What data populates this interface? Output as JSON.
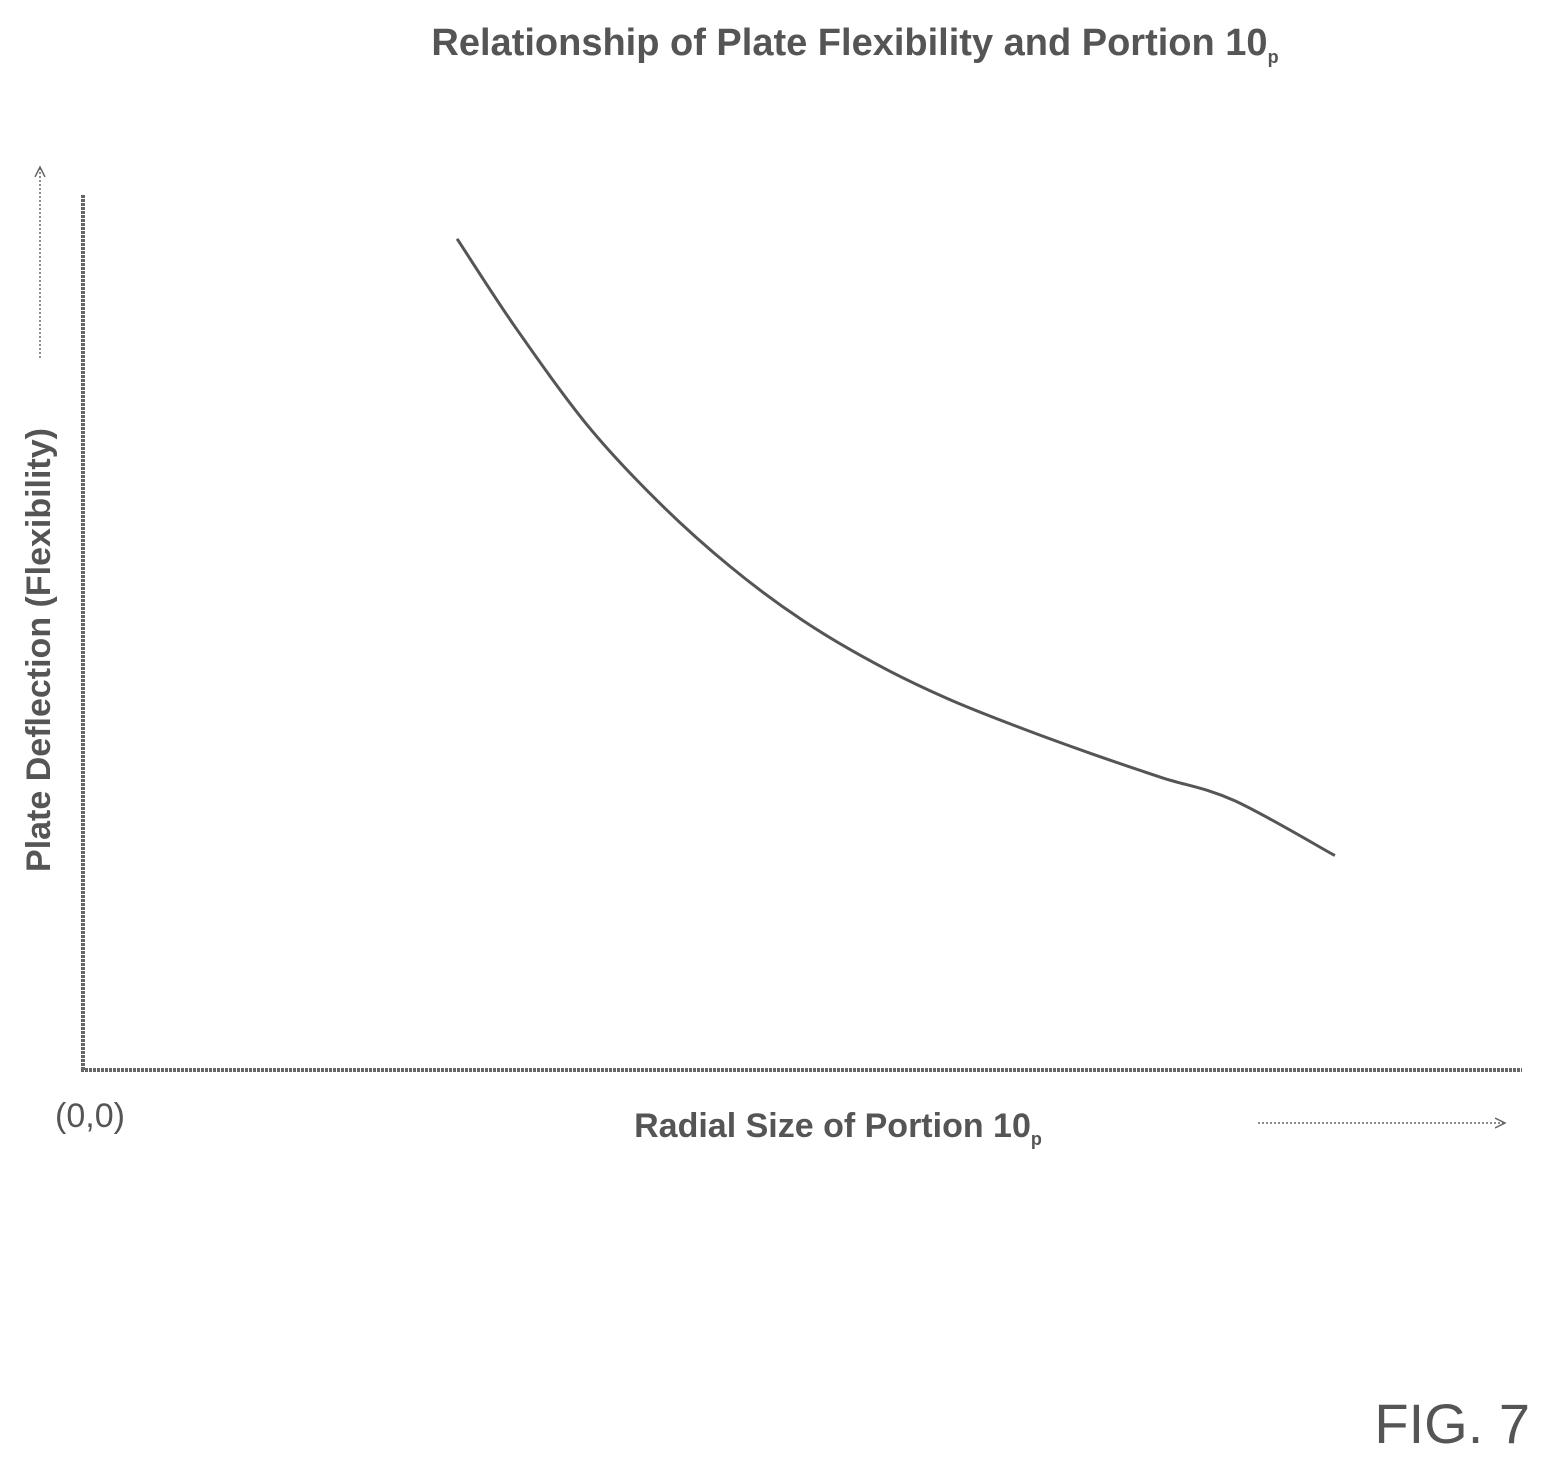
{
  "chart_data": {
    "type": "line",
    "title": "Relationship of Plate Flexibility and Portion 10",
    "title_subscript": "p",
    "xlabel": "Radial Size of Portion 10",
    "xlabel_subscript": "p",
    "ylabel": "Plate Deflection (Flexibility)",
    "origin_label": "(0,0)",
    "xlim": [
      0,
      100
    ],
    "ylim": [
      0,
      100
    ],
    "grid": false,
    "series": [
      {
        "x": [
          26,
          30,
          35,
          40,
          45,
          50,
          55,
          60,
          65,
          70,
          75,
          80,
          87
        ],
        "y": [
          95,
          85,
          73.8,
          64.9,
          57.5,
          51.4,
          46.5,
          42.5,
          39.2,
          36.2,
          33.4,
          30.8,
          24.5
        ]
      }
    ],
    "colors": {
      "line": "#555555",
      "axis": "#666666"
    }
  },
  "figure_label": "FIG. 7"
}
